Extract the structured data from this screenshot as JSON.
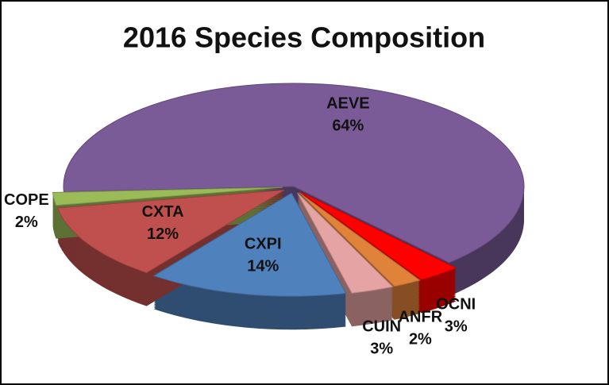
{
  "chart_data": {
    "type": "pie",
    "title": "2016 Species Composition",
    "categories": [
      "AEVE",
      "OCNI",
      "ANFR",
      "CUIN",
      "CXPI",
      "CXTA",
      "COPE"
    ],
    "values": [
      64,
      3,
      2,
      3,
      14,
      12,
      2
    ],
    "value_labels": [
      "64%",
      "3%",
      "2%",
      "3%",
      "14%",
      "12%",
      "2%"
    ],
    "colors": [
      "#7a5a97",
      "#ff0000",
      "#e0823a",
      "#e6a3a3",
      "#4f81bd",
      "#c0504d",
      "#9bbb59"
    ]
  }
}
